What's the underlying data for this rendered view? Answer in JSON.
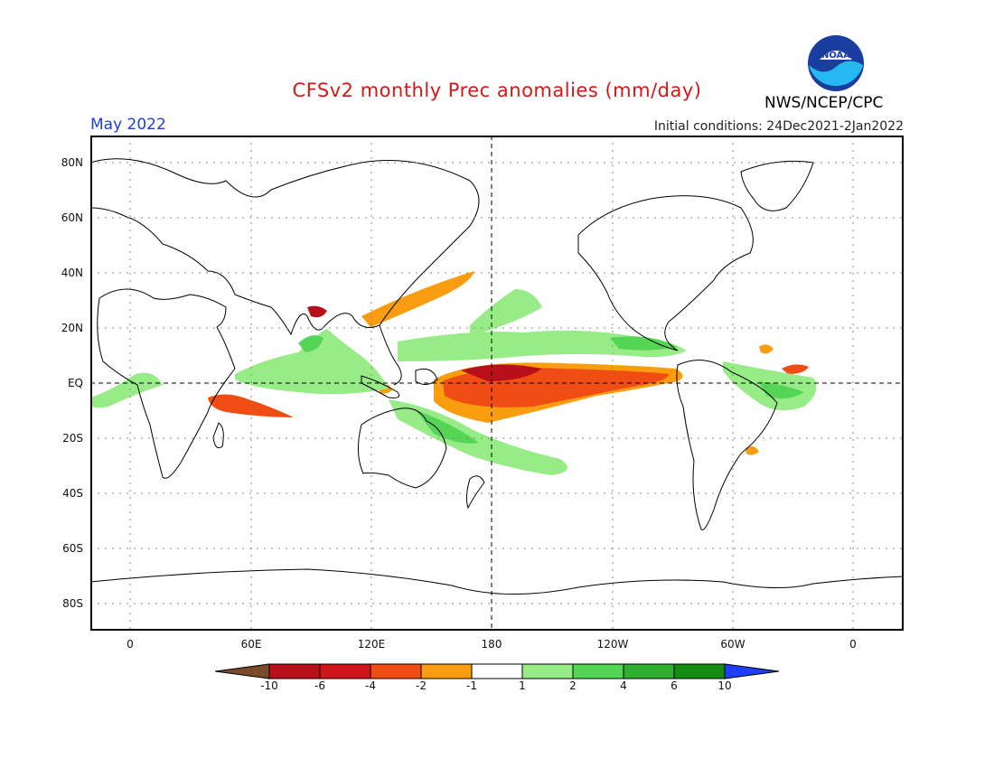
{
  "header": {
    "title": "CFSv2 monthly Prec anomalies (mm/day)",
    "agency": "NWS/NCEP/CPC",
    "month": "May 2022",
    "initial_conditions": "Initial conditions: 24Dec2021-2Jan2022",
    "logo_text": "NOAA"
  },
  "map": {
    "lat_labels": [
      "80N",
      "60N",
      "40N",
      "20N",
      "EQ",
      "20S",
      "40S",
      "60S",
      "80S"
    ],
    "lon_labels": [
      "0",
      "60E",
      "120E",
      "180",
      "120W",
      "60W",
      "0"
    ]
  },
  "legend": {
    "tick_labels": [
      "-10",
      "-6",
      "-4",
      "-2",
      "-1",
      "1",
      "2",
      "4",
      "6",
      "10"
    ],
    "colors": [
      "#7a4a2a",
      "#b8101b",
      "#d0141b",
      "#f04d14",
      "#f89c10",
      "#ffffff",
      "#98ec88",
      "#55d555",
      "#2fae2f",
      "#148c14",
      "#1f3fff"
    ]
  },
  "colors": {
    "title": "#d81818",
    "month": "#1f3fd9",
    "strong_dry": "#b8101b",
    "dry": "#f04d14",
    "moderate_dry": "#f89c10",
    "light_wet": "#98ec88",
    "wet": "#55d555",
    "strong_wet": "#2fae2f",
    "logo_blue": "#1a3ea0",
    "logo_cyan": "#26b8f0"
  }
}
